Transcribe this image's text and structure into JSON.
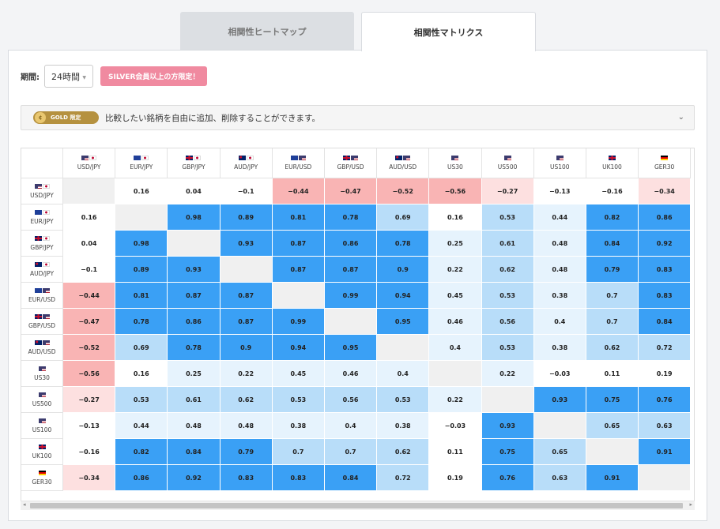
{
  "tabs": [
    {
      "label": "相関性ヒートマップ",
      "active": false
    },
    {
      "label": "相関性マトリクス",
      "active": true
    }
  ],
  "period": {
    "label": "期間:",
    "value": "24時間"
  },
  "silver_badge": "SILVER会員以上の方限定！",
  "gold_bar": {
    "badge": "GOLD 限定",
    "text": "比較したい銘柄を自由に追加、削除することができます。"
  },
  "colors": {
    "strong_pos": "#3aa0f5",
    "mid_pos": "#b8ddf9",
    "weak_pos": "#e6f3fd",
    "neutral": "#ffffff",
    "weak_neg": "#fde0e0",
    "mid_neg": "#f9b4b4",
    "diag": "#f0f0f0"
  },
  "matrix": {
    "symbols": [
      "USD/JPY",
      "EUR/JPY",
      "GBP/JPY",
      "AUD/JPY",
      "EUR/USD",
      "GBP/USD",
      "AUD/USD",
      "US30",
      "US500",
      "US100",
      "UK100",
      "GER30"
    ],
    "flags": [
      [
        "us",
        "jp"
      ],
      [
        "eu",
        "jp"
      ],
      [
        "gb",
        "jp"
      ],
      [
        "au",
        "jp"
      ],
      [
        "eu",
        "us"
      ],
      [
        "gb",
        "us"
      ],
      [
        "au",
        "us"
      ],
      [
        "us"
      ],
      [
        "us"
      ],
      [
        "us"
      ],
      [
        "gb"
      ],
      [
        "de"
      ]
    ],
    "values": [
      [
        null,
        0.16,
        0.04,
        -0.1,
        -0.44,
        -0.47,
        -0.52,
        -0.56,
        -0.27,
        -0.13,
        -0.16,
        -0.34
      ],
      [
        0.16,
        null,
        0.98,
        0.89,
        0.81,
        0.78,
        0.69,
        0.16,
        0.53,
        0.44,
        0.82,
        0.86
      ],
      [
        0.04,
        0.98,
        null,
        0.93,
        0.87,
        0.86,
        0.78,
        0.25,
        0.61,
        0.48,
        0.84,
        0.92
      ],
      [
        -0.1,
        0.89,
        0.93,
        null,
        0.87,
        0.87,
        0.9,
        0.22,
        0.62,
        0.48,
        0.79,
        0.83
      ],
      [
        -0.44,
        0.81,
        0.87,
        0.87,
        null,
        0.99,
        0.94,
        0.45,
        0.53,
        0.38,
        0.7,
        0.83
      ],
      [
        -0.47,
        0.78,
        0.86,
        0.87,
        0.99,
        null,
        0.95,
        0.46,
        0.56,
        0.4,
        0.7,
        0.84
      ],
      [
        -0.52,
        0.69,
        0.78,
        0.9,
        0.94,
        0.95,
        null,
        0.4,
        0.53,
        0.38,
        0.62,
        0.72
      ],
      [
        -0.56,
        0.16,
        0.25,
        0.22,
        0.45,
        0.46,
        0.4,
        null,
        0.22,
        -0.03,
        0.11,
        0.19
      ],
      [
        -0.27,
        0.53,
        0.61,
        0.62,
        0.53,
        0.56,
        0.53,
        0.22,
        null,
        0.93,
        0.75,
        0.76
      ],
      [
        -0.13,
        0.44,
        0.48,
        0.48,
        0.38,
        0.4,
        0.38,
        -0.03,
        0.93,
        null,
        0.65,
        0.63
      ],
      [
        -0.16,
        0.82,
        0.84,
        0.79,
        0.7,
        0.7,
        0.62,
        0.11,
        0.75,
        0.65,
        null,
        0.91
      ],
      [
        -0.34,
        0.86,
        0.92,
        0.83,
        0.83,
        0.84,
        0.72,
        0.19,
        0.76,
        0.63,
        0.91,
        null
      ]
    ]
  }
}
